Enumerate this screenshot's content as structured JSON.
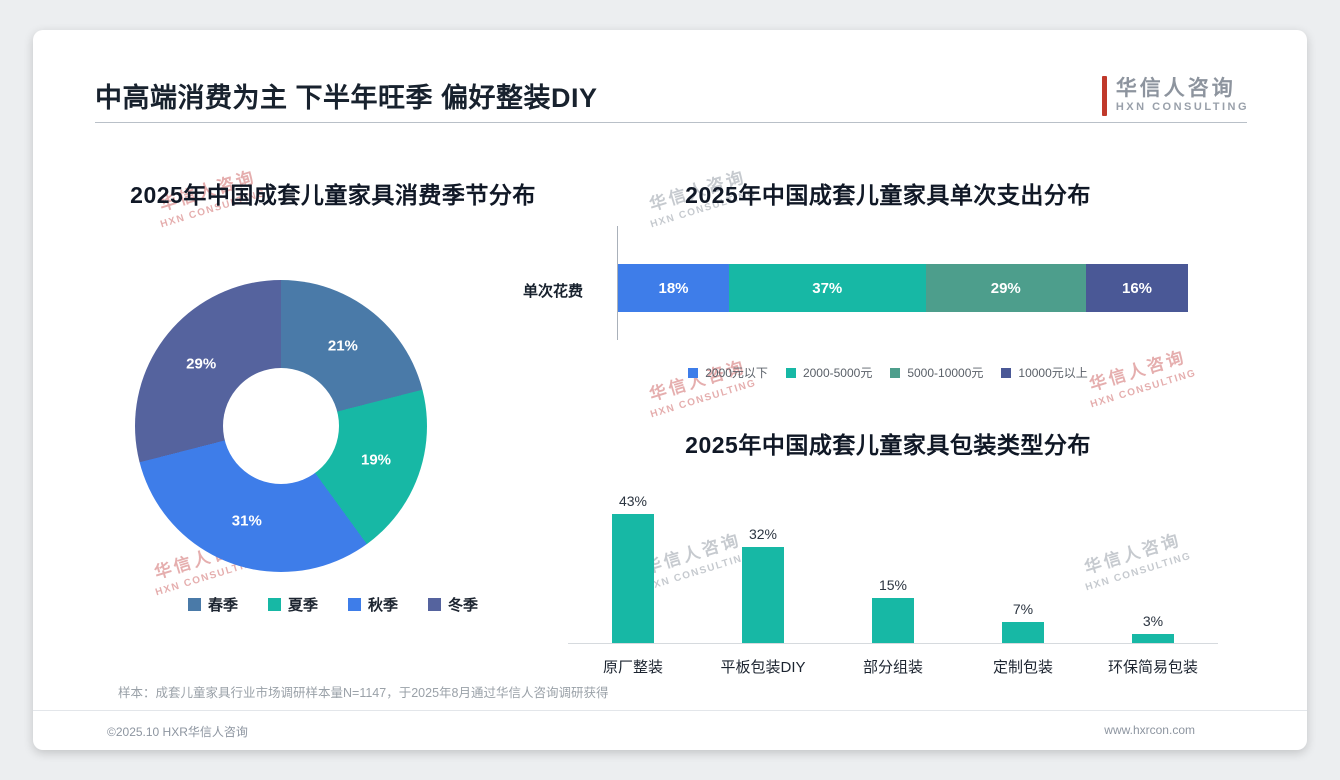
{
  "page": {
    "title": "中高端消费为主 下半年旺季 偏好整装DIY",
    "logo": {
      "cn": "华信人咨询",
      "en": "HXN CONSULTING"
    },
    "watermark": {
      "cn": "华信人咨询",
      "en": "HXN CONSULTING"
    },
    "note": "样本：成套儿童家具行业市场调研样本量N=1147，于2025年8月通过华信人咨询调研获得",
    "footer": {
      "left": "©2025.10 HXR华信人咨询",
      "right": "www.hxrcon.com"
    },
    "accent_color": "#c0392b"
  },
  "chart_data": [
    {
      "type": "pie",
      "subtype": "donut",
      "title": "2025年中国成套儿童家具消费季节分布",
      "labels": [
        "春季",
        "夏季",
        "秋季",
        "冬季"
      ],
      "values": [
        21,
        19,
        31,
        29
      ],
      "unit": "%",
      "colors": [
        "#4a7aa8",
        "#17b8a5",
        "#3e7de9",
        "#55639e"
      ],
      "legend_position": "bottom"
    },
    {
      "type": "bar",
      "subtype": "horizontal-stacked",
      "title": "2025年中国成套儿童家具单次支出分布",
      "row_label": "单次花费",
      "categories": [
        "2000元以下",
        "2000-5000元",
        "5000-10000元",
        "10000元以上"
      ],
      "values": [
        18,
        37,
        29,
        16
      ],
      "unit": "%",
      "colors": [
        "#3e7de9",
        "#17b8a5",
        "#4d9e8c",
        "#4a5896"
      ],
      "legend_position": "bottom"
    },
    {
      "type": "bar",
      "title": "2025年中国成套儿童家具包装类型分布",
      "categories": [
        "原厂整装",
        "平板包装DIY",
        "部分组装",
        "定制包装",
        "环保简易包装"
      ],
      "values": [
        43,
        32,
        15,
        7,
        3
      ],
      "unit": "%",
      "color": "#17b8a5",
      "ylim": [
        0,
        50
      ],
      "grid": false
    }
  ]
}
